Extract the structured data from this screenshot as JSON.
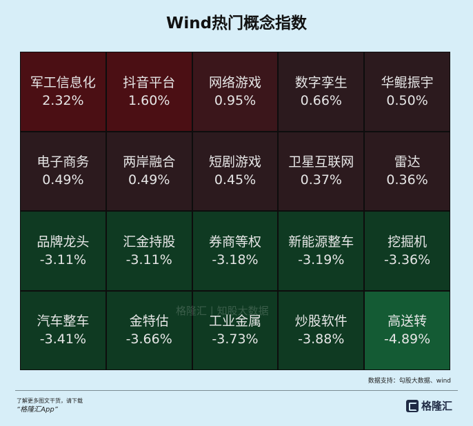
{
  "header": {
    "title": "Wind热门概念指数"
  },
  "chart_data": {
    "type": "heatmap",
    "title": "Wind热门概念指数",
    "unit": "%",
    "colors": {
      "pos_strong": "#4b0f14",
      "pos_mid": "#3b161b",
      "pos_weak": "#2c1a1e",
      "neg_weak": "#0f3a22",
      "neg_strong": "#145b34"
    },
    "cells": [
      {
        "name": "军工信息化",
        "value": 2.32,
        "label": "2.32%"
      },
      {
        "name": "抖音平台",
        "value": 1.6,
        "label": "1.60%"
      },
      {
        "name": "网络游戏",
        "value": 0.95,
        "label": "0.95%"
      },
      {
        "name": "数字孪生",
        "value": 0.66,
        "label": "0.66%"
      },
      {
        "name": "华鲲振宇",
        "value": 0.5,
        "label": "0.50%"
      },
      {
        "name": "电子商务",
        "value": 0.49,
        "label": "0.49%"
      },
      {
        "name": "两岸融合",
        "value": 0.49,
        "label": "0.49%"
      },
      {
        "name": "短剧游戏",
        "value": 0.45,
        "label": "0.45%"
      },
      {
        "name": "卫星互联网",
        "value": 0.37,
        "label": "0.37%"
      },
      {
        "name": "雷达",
        "value": 0.36,
        "label": "0.36%"
      },
      {
        "name": "品牌龙头",
        "value": -3.11,
        "label": "-3.11%"
      },
      {
        "name": "汇金持股",
        "value": -3.11,
        "label": "-3.11%"
      },
      {
        "name": "券商等权",
        "value": -3.18,
        "label": "-3.18%"
      },
      {
        "name": "新能源整车",
        "value": -3.19,
        "label": "-3.19%"
      },
      {
        "name": "挖掘机",
        "value": -3.36,
        "label": "-3.36%"
      },
      {
        "name": "汽车整车",
        "value": -3.41,
        "label": "-3.41%"
      },
      {
        "name": "金特估",
        "value": -3.66,
        "label": "-3.66%"
      },
      {
        "name": "工业金属",
        "value": -3.73,
        "label": "-3.73%"
      },
      {
        "name": "炒股软件",
        "value": -3.88,
        "label": "-3.88%"
      },
      {
        "name": "高送转",
        "value": -4.89,
        "label": "-4.89%"
      }
    ]
  },
  "watermark": "格隆汇 | 知股大数据",
  "source": "数据支持：勾股大数据、wind",
  "footer": {
    "note": "了解更多图文干货，请下载",
    "app": "“格隆汇App”",
    "brand": "格隆汇"
  }
}
